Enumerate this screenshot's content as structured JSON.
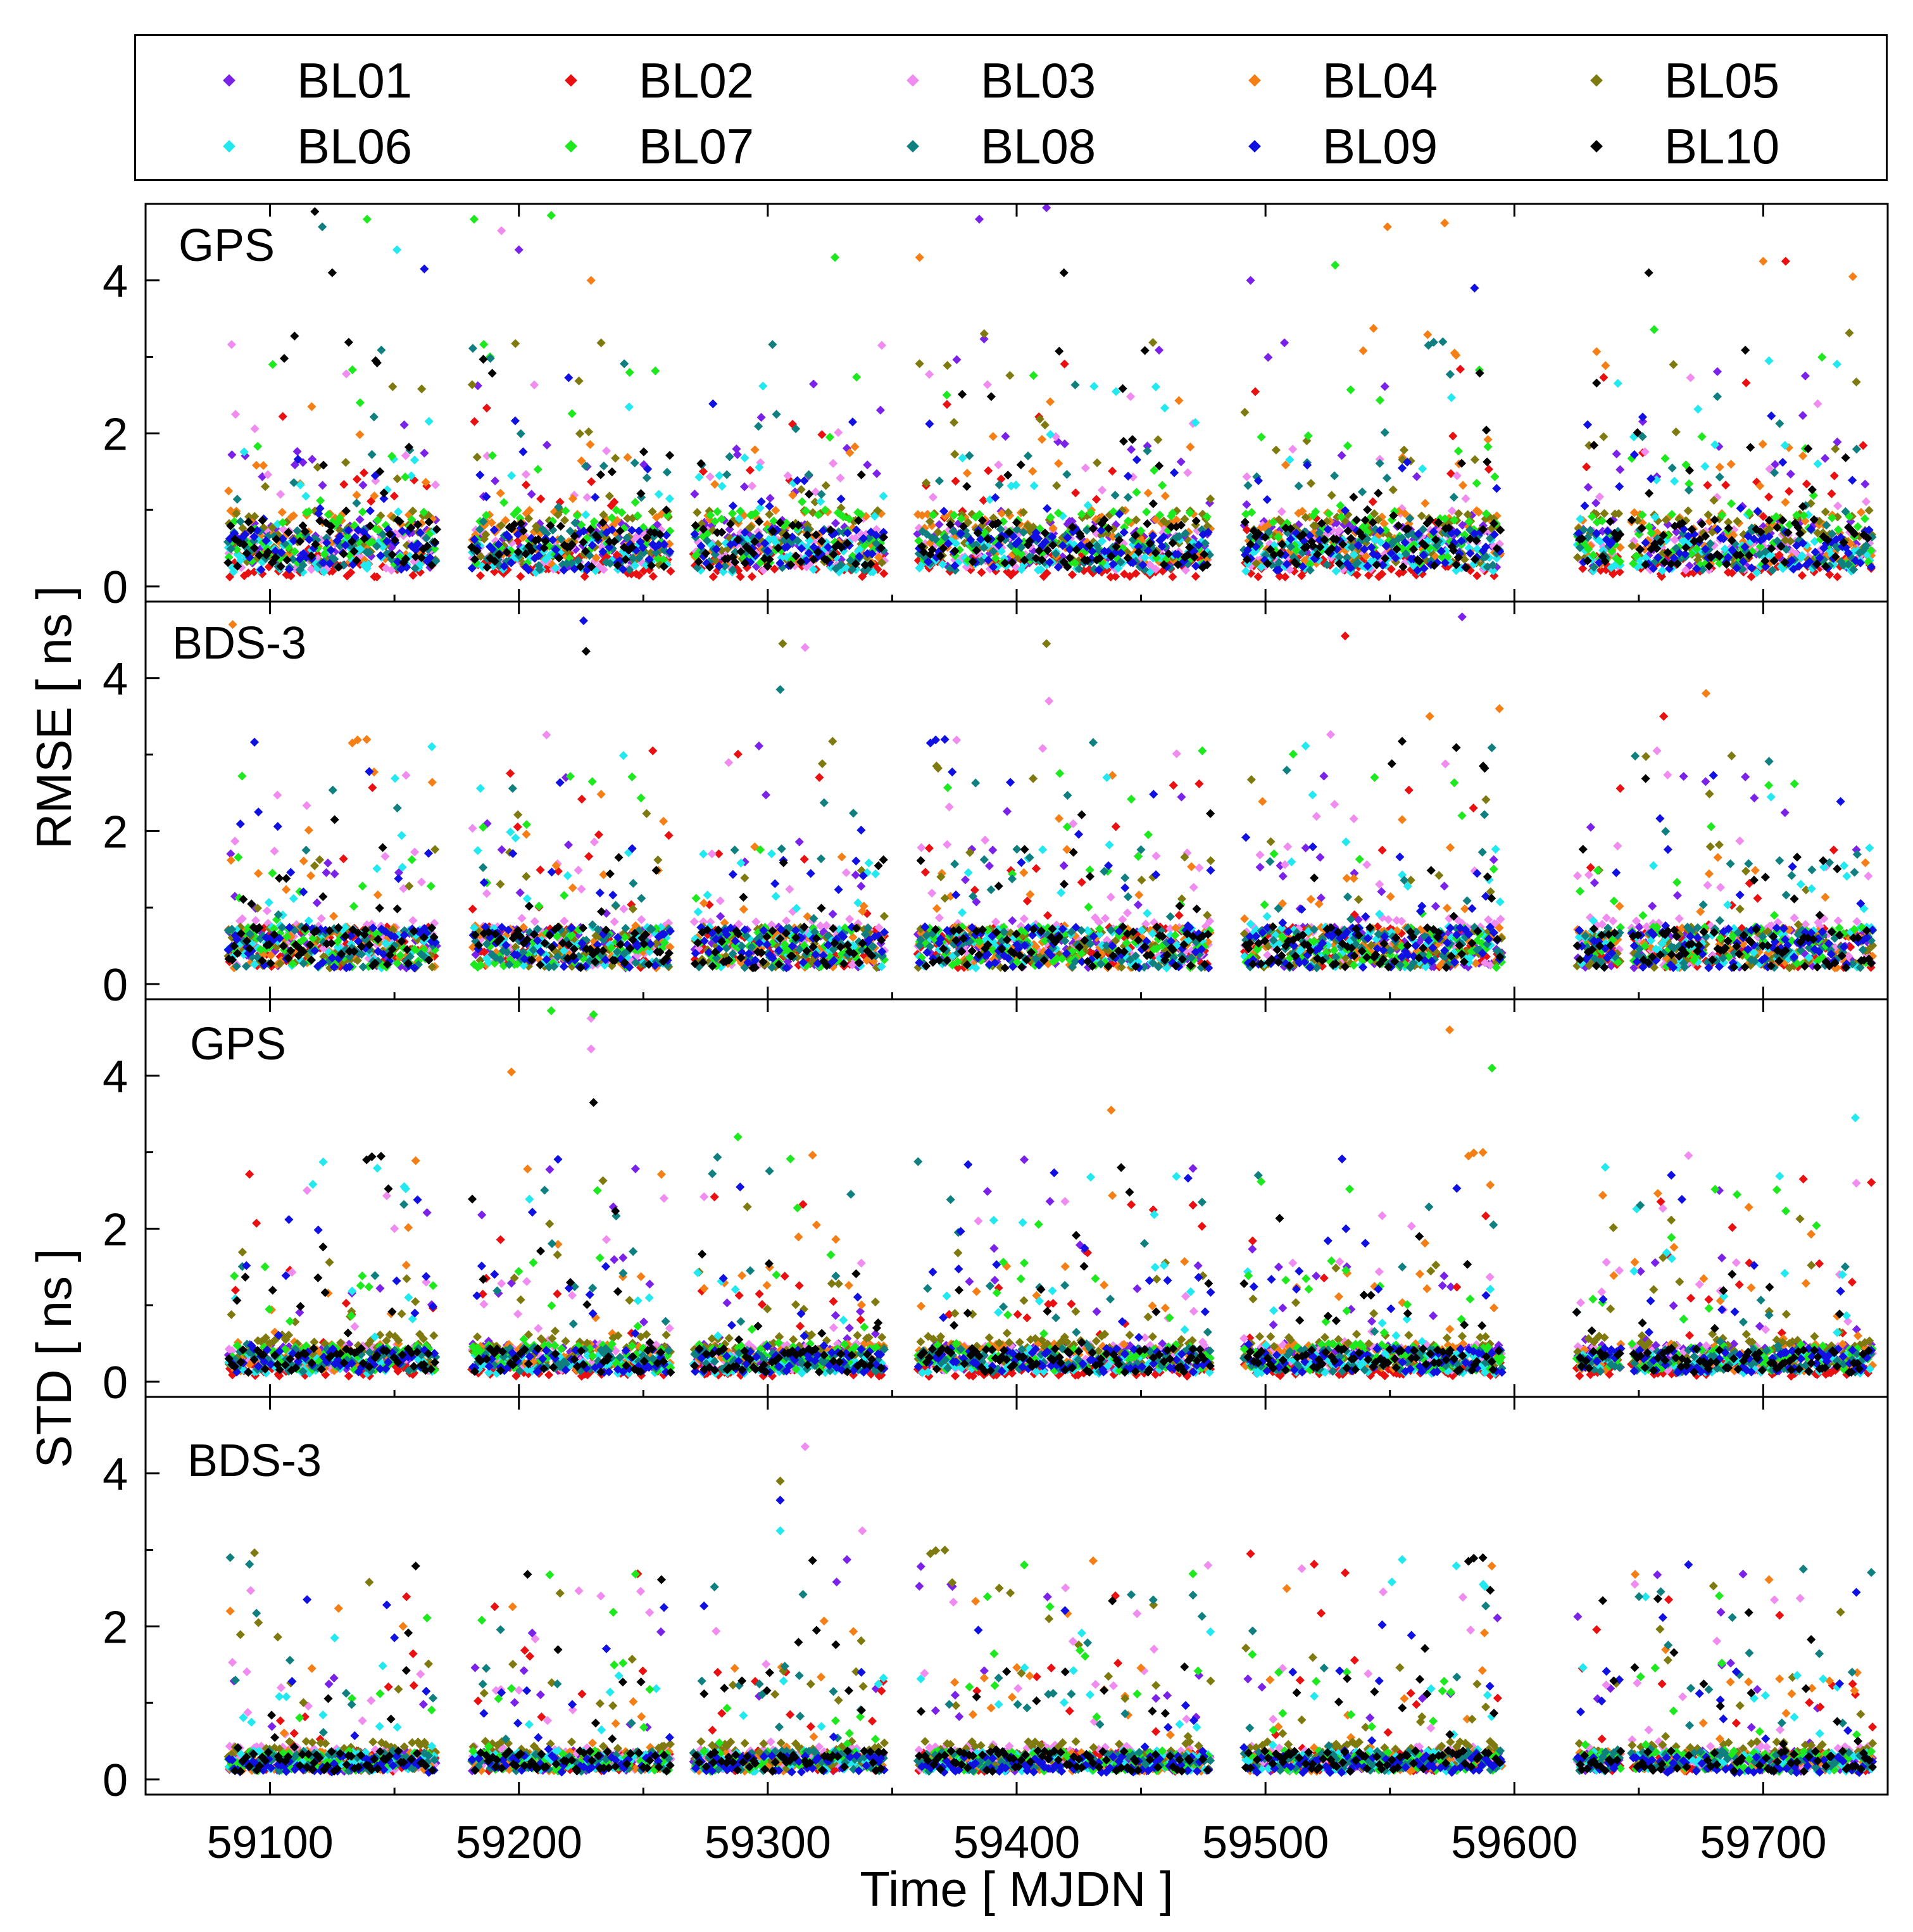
{
  "chart_data": {
    "type": "scatter",
    "legend": [
      {
        "id": "BL01",
        "label": "BL01",
        "color": "#7B22E8"
      },
      {
        "id": "BL02",
        "label": "BL02",
        "color": "#E81010"
      },
      {
        "id": "BL03",
        "label": "BL03",
        "color": "#F08CF0"
      },
      {
        "id": "BL04",
        "label": "BL04",
        "color": "#F57F17"
      },
      {
        "id": "BL05",
        "label": "BL05",
        "color": "#7F7A10"
      },
      {
        "id": "BL06",
        "label": "BL06",
        "color": "#22E8F0"
      },
      {
        "id": "BL07",
        "label": "BL07",
        "color": "#1EE81E"
      },
      {
        "id": "BL08",
        "label": "BL08",
        "color": "#0F7F7F"
      },
      {
        "id": "BL09",
        "label": "BL09",
        "color": "#1010E0"
      },
      {
        "id": "BL10",
        "label": "BL10",
        "color": "#000000"
      }
    ],
    "xlabel": "Time [ MJDN ]",
    "xlim": [
      59050,
      59750
    ],
    "xticks": [
      "59100",
      "59200",
      "59300",
      "59400",
      "59500",
      "59600",
      "59700"
    ],
    "xtick_values": [
      59100,
      59200,
      59300,
      59400,
      59500,
      59600,
      59700
    ],
    "ylabels": {
      "rmse": "RMSE [ ns ]",
      "std": "STD [ ns ]"
    },
    "yticks": [
      "0",
      "2",
      "4"
    ],
    "ytick_values": [
      0,
      2,
      4
    ],
    "ylim": [
      0,
      5
    ],
    "data_gaps": [
      [
        59058,
        59083
      ],
      [
        59167,
        59181
      ],
      [
        59261,
        59270
      ],
      [
        59347,
        59360
      ],
      [
        59478,
        59491
      ],
      [
        59595,
        59625
      ],
      [
        59643,
        59647
      ]
    ],
    "panels": [
      {
        "id": "rmse-gps",
        "label": "GPS",
        "metric": "RMSE",
        "system": "GPS",
        "typical": {
          "BL01": 0.7,
          "BL02": 0.35,
          "BL03": 0.6,
          "BL04": 0.8,
          "BL05": 0.8,
          "BL06": 0.5,
          "BL07": 0.8,
          "BL08": 0.6,
          "BL09": 0.6,
          "BL10": 0.7
        },
        "outliers": [
          {
            "series": "BL10",
            "x": 59118,
            "y": 4.9
          },
          {
            "series": "BL08",
            "x": 59121,
            "y": 4.7
          },
          {
            "series": "BL10",
            "x": 59125,
            "y": 4.1
          },
          {
            "series": "BL07",
            "x": 59139,
            "y": 4.8
          },
          {
            "series": "BL06",
            "x": 59151,
            "y": 4.4
          },
          {
            "series": "BL09",
            "x": 59162,
            "y": 4.15
          },
          {
            "series": "BL07",
            "x": 59182,
            "y": 4.8
          },
          {
            "series": "BL03",
            "x": 59193,
            "y": 4.65
          },
          {
            "series": "BL01",
            "x": 59200,
            "y": 4.4
          },
          {
            "series": "BL07",
            "x": 59213,
            "y": 4.85
          },
          {
            "series": "BL04",
            "x": 59229,
            "y": 4.0
          },
          {
            "series": "BL07",
            "x": 59327,
            "y": 4.3
          },
          {
            "series": "BL04",
            "x": 59361,
            "y": 4.3
          },
          {
            "series": "BL01",
            "x": 59385,
            "y": 4.8
          },
          {
            "series": "BL01",
            "x": 59412,
            "y": 4.95
          },
          {
            "series": "BL10",
            "x": 59419,
            "y": 4.1
          },
          {
            "series": "BL01",
            "x": 59494,
            "y": 4.0
          },
          {
            "series": "BL07",
            "x": 59528,
            "y": 4.2
          },
          {
            "series": "BL04",
            "x": 59549,
            "y": 4.7
          },
          {
            "series": "BL04",
            "x": 59572,
            "y": 4.75
          },
          {
            "series": "BL09",
            "x": 59584,
            "y": 3.9
          },
          {
            "series": "BL10",
            "x": 59654,
            "y": 4.1
          },
          {
            "series": "BL04",
            "x": 59700,
            "y": 4.25
          },
          {
            "series": "BL02",
            "x": 59709,
            "y": 4.25
          },
          {
            "series": "BL04",
            "x": 59736,
            "y": 4.05
          }
        ]
      },
      {
        "id": "rmse-bds3",
        "label": "BDS-3",
        "metric": "RMSE",
        "system": "BDS-3",
        "typical": {
          "BL01": 0.6,
          "BL02": 0.6,
          "BL03": 0.7,
          "BL04": 0.6,
          "BL05": 0.6,
          "BL06": 0.6,
          "BL07": 0.6,
          "BL08": 0.6,
          "BL09": 0.6,
          "BL10": 0.6
        },
        "outliers": [
          {
            "series": "BL04",
            "x": 59085,
            "y": 4.7
          },
          {
            "series": "BL10",
            "x": 59227,
            "y": 4.35
          },
          {
            "series": "BL09",
            "x": 59226,
            "y": 4.75
          },
          {
            "series": "BL05",
            "x": 59306,
            "y": 4.45
          },
          {
            "series": "BL03",
            "x": 59315,
            "y": 4.4
          },
          {
            "series": "BL08",
            "x": 59305,
            "y": 3.85
          },
          {
            "series": "BL05",
            "x": 59412,
            "y": 4.45
          },
          {
            "series": "BL03",
            "x": 59413,
            "y": 3.7
          },
          {
            "series": "BL02",
            "x": 59532,
            "y": 4.55
          },
          {
            "series": "BL01",
            "x": 59579,
            "y": 4.8
          },
          {
            "series": "BL04",
            "x": 59594,
            "y": 3.6
          },
          {
            "series": "BL04",
            "x": 59566,
            "y": 3.5
          },
          {
            "series": "BL02",
            "x": 59660,
            "y": 3.5
          },
          {
            "series": "BL04",
            "x": 59677,
            "y": 3.8
          }
        ]
      },
      {
        "id": "std-gps",
        "label": "GPS",
        "metric": "STD",
        "system": "GPS",
        "typical": {
          "BL01": 0.4,
          "BL02": 0.2,
          "BL03": 0.4,
          "BL04": 0.4,
          "BL05": 0.5,
          "BL06": 0.3,
          "BL07": 0.4,
          "BL08": 0.35,
          "BL09": 0.35,
          "BL10": 0.35
        },
        "outliers": [
          {
            "series": "BL07",
            "x": 59213,
            "y": 4.85
          },
          {
            "series": "BL03",
            "x": 59229,
            "y": 4.75
          },
          {
            "series": "BL07",
            "x": 59230,
            "y": 4.8
          },
          {
            "series": "BL04",
            "x": 59197,
            "y": 4.05
          },
          {
            "series": "BL03",
            "x": 59229,
            "y": 4.35
          },
          {
            "series": "BL10",
            "x": 59230,
            "y": 3.65
          },
          {
            "series": "BL04",
            "x": 59574,
            "y": 4.6
          },
          {
            "series": "BL07",
            "x": 59591,
            "y": 4.1
          },
          {
            "series": "BL04",
            "x": 59438,
            "y": 3.55
          },
          {
            "series": "BL06",
            "x": 59737,
            "y": 3.45
          },
          {
            "series": "BL07",
            "x": 59288,
            "y": 3.2
          },
          {
            "series": "BL10",
            "x": 59442,
            "y": 2.8
          }
        ]
      },
      {
        "id": "std-bds3",
        "label": "BDS-3",
        "metric": "STD",
        "system": "BDS-3",
        "typical": {
          "BL01": 0.3,
          "BL02": 0.3,
          "BL03": 0.35,
          "BL04": 0.3,
          "BL05": 0.4,
          "BL06": 0.3,
          "BL07": 0.3,
          "BL08": 0.3,
          "BL09": 0.25,
          "BL10": 0.3
        },
        "outliers": [
          {
            "series": "BL03",
            "x": 59315,
            "y": 4.35
          },
          {
            "series": "BL05",
            "x": 59305,
            "y": 3.9
          },
          {
            "series": "BL09",
            "x": 59305,
            "y": 3.65
          },
          {
            "series": "BL06",
            "x": 59305,
            "y": 3.25
          },
          {
            "series": "BL03",
            "x": 59338,
            "y": 3.25
          },
          {
            "series": "BL02",
            "x": 59494,
            "y": 2.95
          },
          {
            "series": "BL02",
            "x": 59532,
            "y": 2.7
          },
          {
            "series": "BL08",
            "x": 59084,
            "y": 2.9
          },
          {
            "series": "BL05",
            "x": 59393,
            "y": 2.5
          },
          {
            "series": "BL02",
            "x": 59662,
            "y": 2.35
          },
          {
            "series": "BL04",
            "x": 59084,
            "y": 2.2
          },
          {
            "series": "BL05",
            "x": 59413,
            "y": 2.1
          }
        ]
      }
    ]
  }
}
